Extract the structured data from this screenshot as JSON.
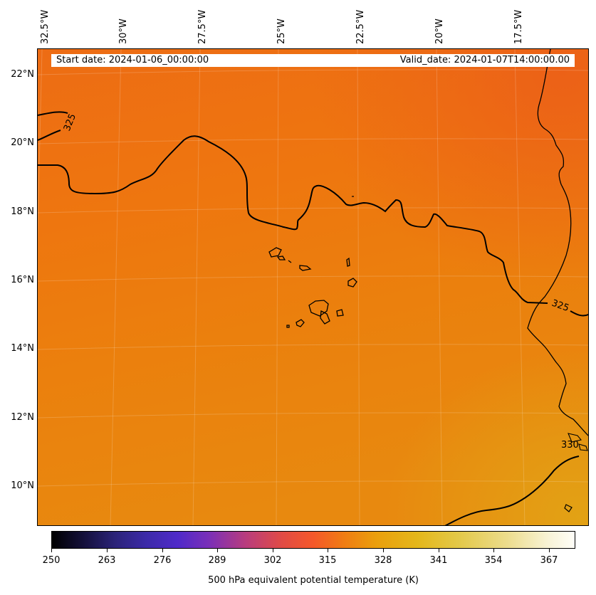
{
  "map": {
    "lon_labels": [
      "32.5°W",
      "30°W",
      "27.5°W",
      "25°W",
      "22.5°W",
      "20°W",
      "17.5°W"
    ],
    "lat_labels": [
      "22°N",
      "20°N",
      "18°N",
      "16°N",
      "14°N",
      "12°N",
      "10°N"
    ],
    "start_date": "Start date: 2024-01-06_00:00:00",
    "valid_date": "Valid_date: 2024-01-07T14:00:00.00",
    "contour_labels": [
      "325",
      "325",
      "330"
    ],
    "field_colors": {
      "north": "#ee6a12",
      "mid": "#ee7a0e",
      "south": "#e8880e",
      "southeast": "#e39a12"
    }
  },
  "colorbar": {
    "ticks": [
      "250",
      "263",
      "276",
      "289",
      "302",
      "315",
      "328",
      "341",
      "354",
      "367"
    ],
    "range": [
      250,
      373
    ],
    "title": "500 hPa equivalent potential temperature (K)"
  }
}
